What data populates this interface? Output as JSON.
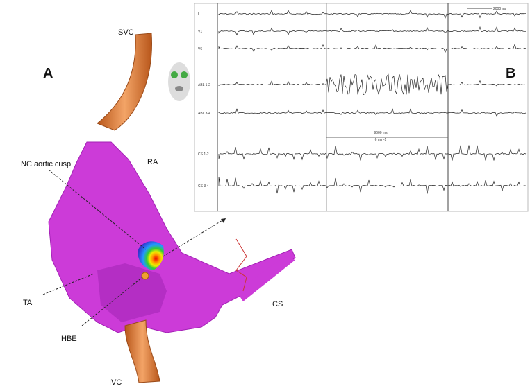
{
  "panel_a": {
    "label": "A",
    "structures": {
      "svc": "SVC",
      "ra": "RA",
      "nc_cusp": "NC aortic cusp",
      "ta": "TA",
      "hbe": "HBE",
      "ivc": "IVC",
      "cs": "CS"
    }
  },
  "panel_b": {
    "label": "B",
    "scale": "2000 ms",
    "channels": [
      "I",
      "V1",
      "V6",
      "ABL 1-2",
      "ABL 3-4",
      "CS 1-2",
      "CS 3-4"
    ],
    "interval": "9600 ms",
    "rate": "6 min-1"
  }
}
